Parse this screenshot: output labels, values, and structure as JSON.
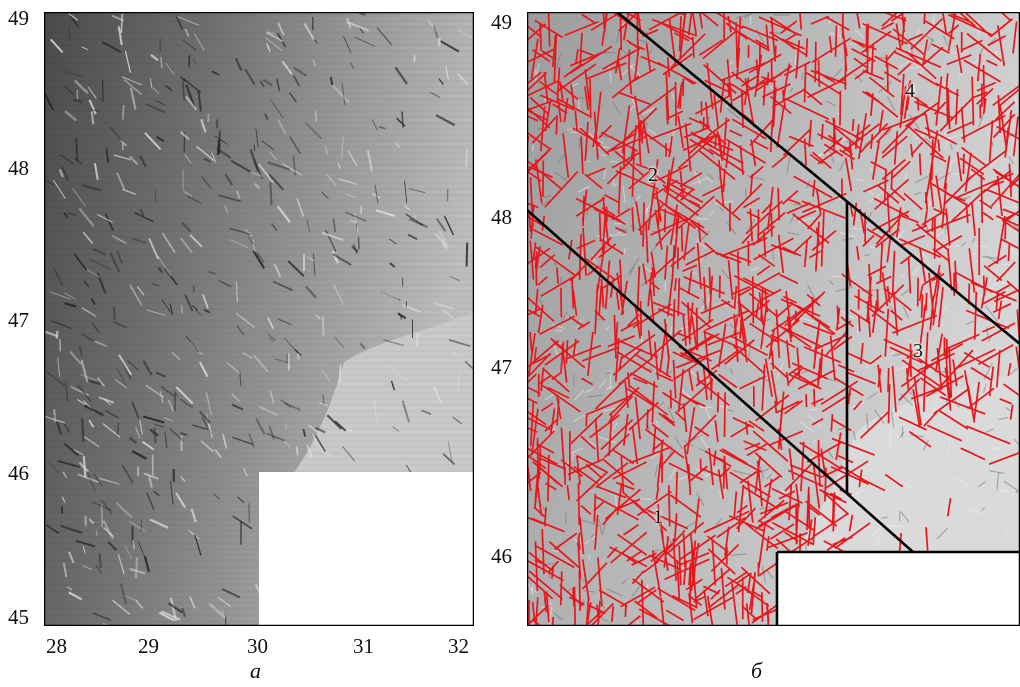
{
  "panel_a": {
    "y_ticks": [
      "49",
      "48",
      "47",
      "46",
      "45"
    ],
    "x_ticks": [
      "28",
      "29",
      "30",
      "31",
      "32"
    ],
    "caption": "а"
  },
  "panel_b": {
    "y_ticks": [
      "49",
      "48",
      "47",
      "46"
    ],
    "caption": "б",
    "zones": [
      "1",
      "2",
      "3",
      "4"
    ],
    "lineament_color": "#e8161c",
    "boundary_color": "#000000"
  }
}
